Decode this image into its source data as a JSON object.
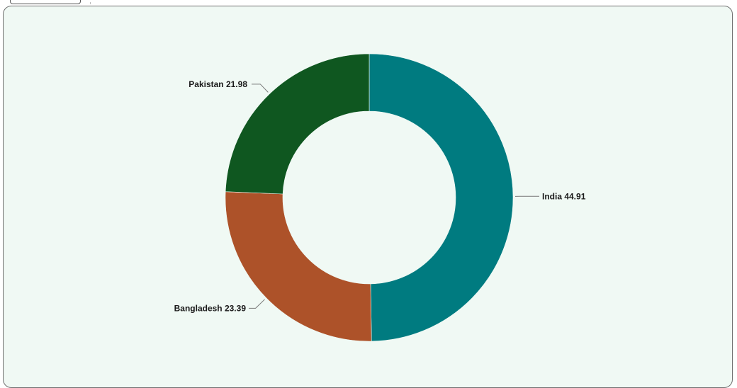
{
  "chart_data": {
    "type": "pie",
    "variant": "donut",
    "title": "",
    "categories": [
      "India",
      "Bangladesh",
      "Pakistan"
    ],
    "values": [
      44.91,
      23.39,
      21.98
    ],
    "labels": [
      "India 44.91",
      "Bangladesh 23.39",
      "Pakistan 21.98"
    ],
    "colors": [
      "#007b80",
      "#ad5229",
      "#0f5720"
    ],
    "legend": "none"
  },
  "colors": {
    "panel_background": "#f0f9f4",
    "panel_border": "#6f6f6f"
  }
}
